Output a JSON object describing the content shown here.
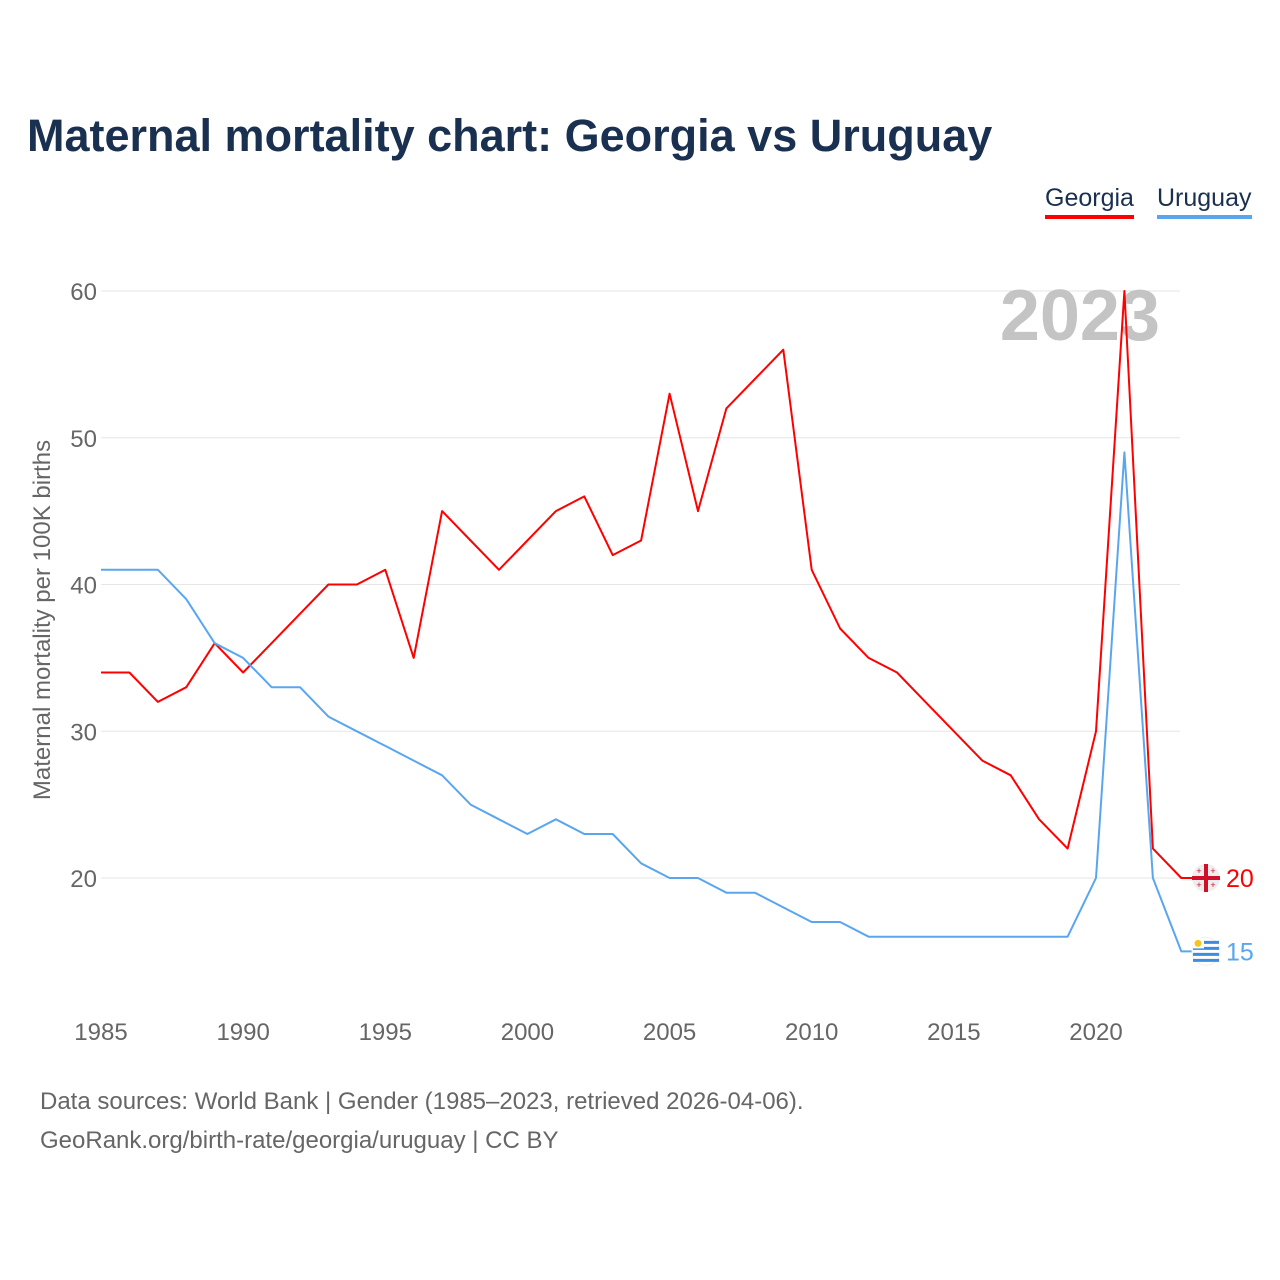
{
  "title": "Maternal mortality chart: Georgia vs Uruguay",
  "footer": {
    "line1": "Data sources: World Bank | Gender (1985–2023, retrieved 2026-04-06).",
    "line2": "GeoRank.org/birth-rate/georgia/uruguay | CC BY"
  },
  "chart_data": {
    "type": "line",
    "title": "Maternal mortality chart: Georgia vs Uruguay",
    "ylabel": "Maternal mortality per 100K births",
    "xlabel": "",
    "year_label": "2023",
    "xlim": [
      1985,
      2023
    ],
    "ylim": [
      20,
      60
    ],
    "xticks": [
      "1985",
      "1990",
      "1995",
      "2000",
      "2005",
      "2010",
      "2015",
      "2020"
    ],
    "yticks": [
      "20",
      "30",
      "40",
      "50",
      "60"
    ],
    "grid": true,
    "legend_position": "top-right",
    "x": [
      1985,
      1986,
      1987,
      1988,
      1989,
      1990,
      1991,
      1992,
      1993,
      1994,
      1995,
      1996,
      1997,
      1998,
      1999,
      2000,
      2001,
      2002,
      2003,
      2004,
      2005,
      2006,
      2007,
      2008,
      2009,
      2010,
      2011,
      2012,
      2013,
      2014,
      2015,
      2016,
      2017,
      2018,
      2019,
      2020,
      2021,
      2022,
      2023
    ],
    "series": [
      {
        "name": "Georgia",
        "color": "#ff0000",
        "end_label": "20",
        "values": [
          34,
          34,
          32,
          33,
          36,
          34,
          36,
          38,
          40,
          40,
          41,
          35,
          45,
          43,
          41,
          43,
          45,
          46,
          42,
          43,
          53,
          45,
          52,
          54,
          56,
          41,
          37,
          35,
          34,
          32,
          30,
          28,
          27,
          24,
          22,
          30,
          60,
          22,
          20
        ]
      },
      {
        "name": "Uruguay",
        "color": "#5aa6ee",
        "end_label": "15",
        "values": [
          41,
          41,
          41,
          39,
          36,
          35,
          33,
          33,
          31,
          30,
          29,
          28,
          27,
          25,
          24,
          23,
          24,
          23,
          23,
          21,
          20,
          20,
          19,
          19,
          18,
          17,
          17,
          16,
          16,
          16,
          16,
          16,
          16,
          16,
          16,
          20,
          49,
          20,
          15
        ]
      }
    ]
  }
}
